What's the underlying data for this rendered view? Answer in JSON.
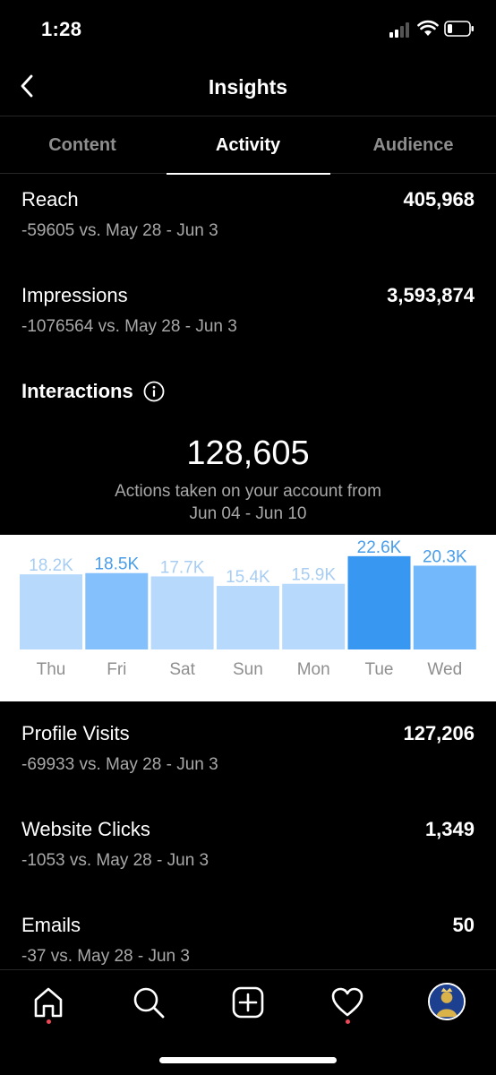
{
  "status_bar": {
    "time": "1:28",
    "signal_icon": "cellular-signal-icon",
    "wifi_icon": "wifi-icon",
    "battery_icon": "battery-low-icon"
  },
  "nav": {
    "title": "Insights",
    "back_icon": "chevron-left-icon"
  },
  "tabs": [
    {
      "label": "Content",
      "active": false
    },
    {
      "label": "Activity",
      "active": true
    },
    {
      "label": "Audience",
      "active": false
    }
  ],
  "stats_top": [
    {
      "label": "Reach",
      "value": "405,968",
      "delta": "-59605 vs. May 28 - Jun 3"
    },
    {
      "label": "Impressions",
      "value": "3,593,874",
      "delta": "-1076564 vs. May 28 - Jun 3"
    }
  ],
  "interactions": {
    "title": "Interactions",
    "info_icon": "info-icon",
    "total": "128,605",
    "caption_line1": "Actions taken on your account from",
    "caption_line2": "Jun 04 - Jun 10"
  },
  "chart_data": {
    "type": "bar",
    "categories": [
      "Thu",
      "Fri",
      "Sat",
      "Sun",
      "Mon",
      "Tue",
      "Wed"
    ],
    "values": [
      18200,
      18500,
      17700,
      15400,
      15900,
      22600,
      20300
    ],
    "labels": [
      "18.2K",
      "18.5K",
      "17.7K",
      "15.4K",
      "15.9K",
      "22.6K",
      "20.3K"
    ],
    "highlight_index": 5,
    "ylim": [
      0,
      23000
    ],
    "colors": {
      "highlight": "#3897f0",
      "high": "#73b8fb",
      "mid": "#84c0fb",
      "low": "#b6d9fc",
      "label_high": "#4a9de8",
      "label_low": "#a8cdf3"
    }
  },
  "stats_bottom": [
    {
      "label": "Profile Visits",
      "value": "127,206",
      "delta": "-69933 vs. May 28 - Jun 3"
    },
    {
      "label": "Website Clicks",
      "value": "1,349",
      "delta": "-1053 vs. May 28 - Jun 3"
    },
    {
      "label": "Emails",
      "value": "50",
      "delta": "-37 vs. May 28 - Jun 3"
    }
  ],
  "tab_bar": {
    "items": [
      {
        "icon": "home-icon",
        "notification_dot": true
      },
      {
        "icon": "search-icon",
        "notification_dot": false
      },
      {
        "icon": "new-post-icon",
        "notification_dot": false
      },
      {
        "icon": "activity-heart-icon",
        "notification_dot": true
      },
      {
        "icon": "profile-avatar",
        "notification_dot": false
      }
    ],
    "dot_color": "#ed4956"
  }
}
